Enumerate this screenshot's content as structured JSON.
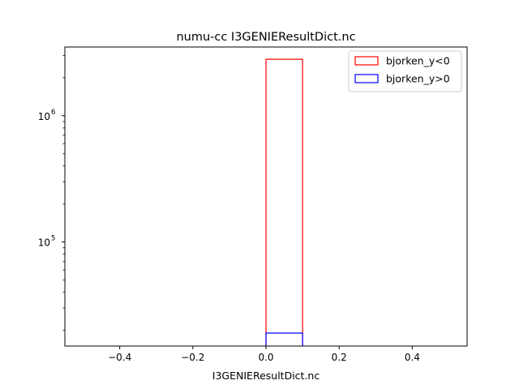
{
  "chart_data": {
    "type": "bar",
    "title": "numu-cc I3GENIEResultDict.nc",
    "xlabel": "I3GENIEResultDict.nc",
    "ylabel": "",
    "xlim": [
      -0.55,
      0.55
    ],
    "ylim": [
      15000,
      3500000
    ],
    "yscale": "log",
    "grid": false,
    "legend_position": "top-right",
    "x_ticks": [
      {
        "value": -0.4,
        "label": "−0.4"
      },
      {
        "value": -0.2,
        "label": "−0.2"
      },
      {
        "value": 0.0,
        "label": "0.0"
      },
      {
        "value": 0.2,
        "label": "0.2"
      },
      {
        "value": 0.4,
        "label": "0.4"
      }
    ],
    "y_ticks": [
      {
        "value": 100000,
        "base": "10",
        "exp": "5"
      },
      {
        "value": 1000000,
        "base": "10",
        "exp": "6"
      }
    ],
    "series": [
      {
        "name": "bjorken_y<0",
        "color": "#ff0000",
        "bins": [
          {
            "x0": 0.0,
            "x1": 0.1,
            "count": 2800000
          }
        ]
      },
      {
        "name": "bjorken_y>0",
        "color": "#0000ff",
        "bins": [
          {
            "x0": 0.0,
            "x1": 0.1,
            "count": 19000
          }
        ]
      }
    ]
  }
}
